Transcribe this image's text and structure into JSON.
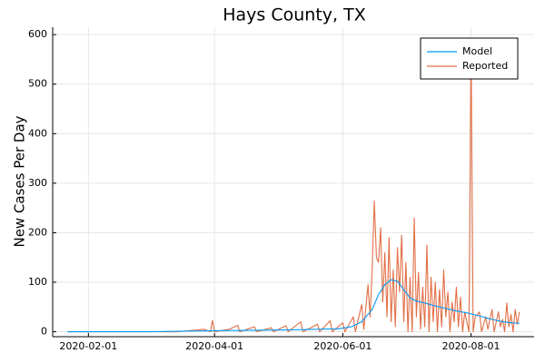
{
  "chart_data": {
    "type": "line",
    "title": "Hays County, TX",
    "xlabel": "",
    "ylabel": "New Cases Per Day",
    "x_start": "2020-01-22",
    "x_end": "2020-08-24",
    "xlim": [
      "2020-01-15",
      "2020-08-31"
    ],
    "ylim": [
      -10,
      615
    ],
    "x_ticks": [
      "2020-02-01",
      "2020-04-01",
      "2020-06-01",
      "2020-08-01"
    ],
    "y_ticks": [
      0,
      100,
      200,
      300,
      400,
      500,
      600
    ],
    "grid": true,
    "legend_position": "top-right",
    "series": [
      {
        "name": "Model",
        "color": "#009af9",
        "key_points": [
          [
            "2020-01-22",
            0
          ],
          [
            "2020-03-01",
            0
          ],
          [
            "2020-03-15",
            1
          ],
          [
            "2020-04-01",
            2
          ],
          [
            "2020-04-20",
            3
          ],
          [
            "2020-05-10",
            4
          ],
          [
            "2020-05-30",
            6
          ],
          [
            "2020-06-05",
            10
          ],
          [
            "2020-06-10",
            20
          ],
          [
            "2020-06-15",
            45
          ],
          [
            "2020-06-18",
            75
          ],
          [
            "2020-06-21",
            95
          ],
          [
            "2020-06-24",
            105
          ],
          [
            "2020-06-27",
            102
          ],
          [
            "2020-06-30",
            85
          ],
          [
            "2020-07-03",
            68
          ],
          [
            "2020-07-06",
            62
          ],
          [
            "2020-07-10",
            58
          ],
          [
            "2020-07-15",
            52
          ],
          [
            "2020-07-20",
            47
          ],
          [
            "2020-07-25",
            42
          ],
          [
            "2020-07-30",
            38
          ],
          [
            "2020-08-05",
            32
          ],
          [
            "2020-08-10",
            26
          ],
          [
            "2020-08-15",
            21
          ],
          [
            "2020-08-20",
            18
          ],
          [
            "2020-08-24",
            17
          ]
        ]
      },
      {
        "name": "Reported",
        "color": "#e26f46",
        "key_points": [
          [
            "2020-01-22",
            0
          ],
          [
            "2020-03-14",
            0
          ],
          [
            "2020-03-20",
            2
          ],
          [
            "2020-03-27",
            5
          ],
          [
            "2020-03-30",
            0
          ],
          [
            "2020-03-31",
            23
          ],
          [
            "2020-04-01",
            0
          ],
          [
            "2020-04-08",
            5
          ],
          [
            "2020-04-12",
            13
          ],
          [
            "2020-04-13",
            0
          ],
          [
            "2020-04-20",
            10
          ],
          [
            "2020-04-21",
            0
          ],
          [
            "2020-04-28",
            8
          ],
          [
            "2020-04-29",
            0
          ],
          [
            "2020-05-05",
            12
          ],
          [
            "2020-05-06",
            0
          ],
          [
            "2020-05-12",
            20
          ],
          [
            "2020-05-13",
            0
          ],
          [
            "2020-05-20",
            15
          ],
          [
            "2020-05-21",
            0
          ],
          [
            "2020-05-26",
            22
          ],
          [
            "2020-05-27",
            0
          ],
          [
            "2020-06-01",
            18
          ],
          [
            "2020-06-02",
            0
          ],
          [
            "2020-06-06",
            30
          ],
          [
            "2020-06-07",
            0
          ],
          [
            "2020-06-10",
            55
          ],
          [
            "2020-06-11",
            5
          ],
          [
            "2020-06-13",
            95
          ],
          [
            "2020-06-14",
            30
          ],
          [
            "2020-06-15",
            130
          ],
          [
            "2020-06-16",
            264
          ],
          [
            "2020-06-17",
            150
          ],
          [
            "2020-06-18",
            140
          ],
          [
            "2020-06-19",
            210
          ],
          [
            "2020-06-20",
            60
          ],
          [
            "2020-06-21",
            160
          ],
          [
            "2020-06-22",
            30
          ],
          [
            "2020-06-23",
            190
          ],
          [
            "2020-06-24",
            20
          ],
          [
            "2020-06-25",
            125
          ],
          [
            "2020-06-26",
            10
          ],
          [
            "2020-06-27",
            170
          ],
          [
            "2020-06-28",
            80
          ],
          [
            "2020-06-29",
            195
          ],
          [
            "2020-06-30",
            20
          ],
          [
            "2020-07-01",
            140
          ],
          [
            "2020-07-02",
            0
          ],
          [
            "2020-07-03",
            110
          ],
          [
            "2020-07-04",
            0
          ],
          [
            "2020-07-05",
            230
          ],
          [
            "2020-07-06",
            30
          ],
          [
            "2020-07-07",
            120
          ],
          [
            "2020-07-08",
            5
          ],
          [
            "2020-07-09",
            90
          ],
          [
            "2020-07-10",
            10
          ],
          [
            "2020-07-11",
            175
          ],
          [
            "2020-07-12",
            0
          ],
          [
            "2020-07-13",
            110
          ],
          [
            "2020-07-14",
            20
          ],
          [
            "2020-07-15",
            100
          ],
          [
            "2020-07-16",
            0
          ],
          [
            "2020-07-17",
            85
          ],
          [
            "2020-07-18",
            10
          ],
          [
            "2020-07-19",
            125
          ],
          [
            "2020-07-20",
            30
          ],
          [
            "2020-07-21",
            80
          ],
          [
            "2020-07-22",
            0
          ],
          [
            "2020-07-23",
            60
          ],
          [
            "2020-07-24",
            20
          ],
          [
            "2020-07-25",
            90
          ],
          [
            "2020-07-26",
            10
          ],
          [
            "2020-07-27",
            70
          ],
          [
            "2020-07-28",
            0
          ],
          [
            "2020-07-29",
            40
          ],
          [
            "2020-07-30",
            20
          ],
          [
            "2020-07-31",
            0
          ],
          [
            "2020-08-01",
            590
          ],
          [
            "2020-08-02",
            0
          ],
          [
            "2020-08-03",
            30
          ],
          [
            "2020-08-05",
            40
          ],
          [
            "2020-08-06",
            0
          ],
          [
            "2020-08-08",
            30
          ],
          [
            "2020-08-09",
            5
          ],
          [
            "2020-08-11",
            45
          ],
          [
            "2020-08-12",
            0
          ],
          [
            "2020-08-14",
            40
          ],
          [
            "2020-08-15",
            10
          ],
          [
            "2020-08-16",
            25
          ],
          [
            "2020-08-17",
            0
          ],
          [
            "2020-08-18",
            58
          ],
          [
            "2020-08-19",
            10
          ],
          [
            "2020-08-20",
            35
          ],
          [
            "2020-08-21",
            0
          ],
          [
            "2020-08-22",
            45
          ],
          [
            "2020-08-23",
            15
          ],
          [
            "2020-08-24",
            40
          ]
        ]
      }
    ]
  }
}
